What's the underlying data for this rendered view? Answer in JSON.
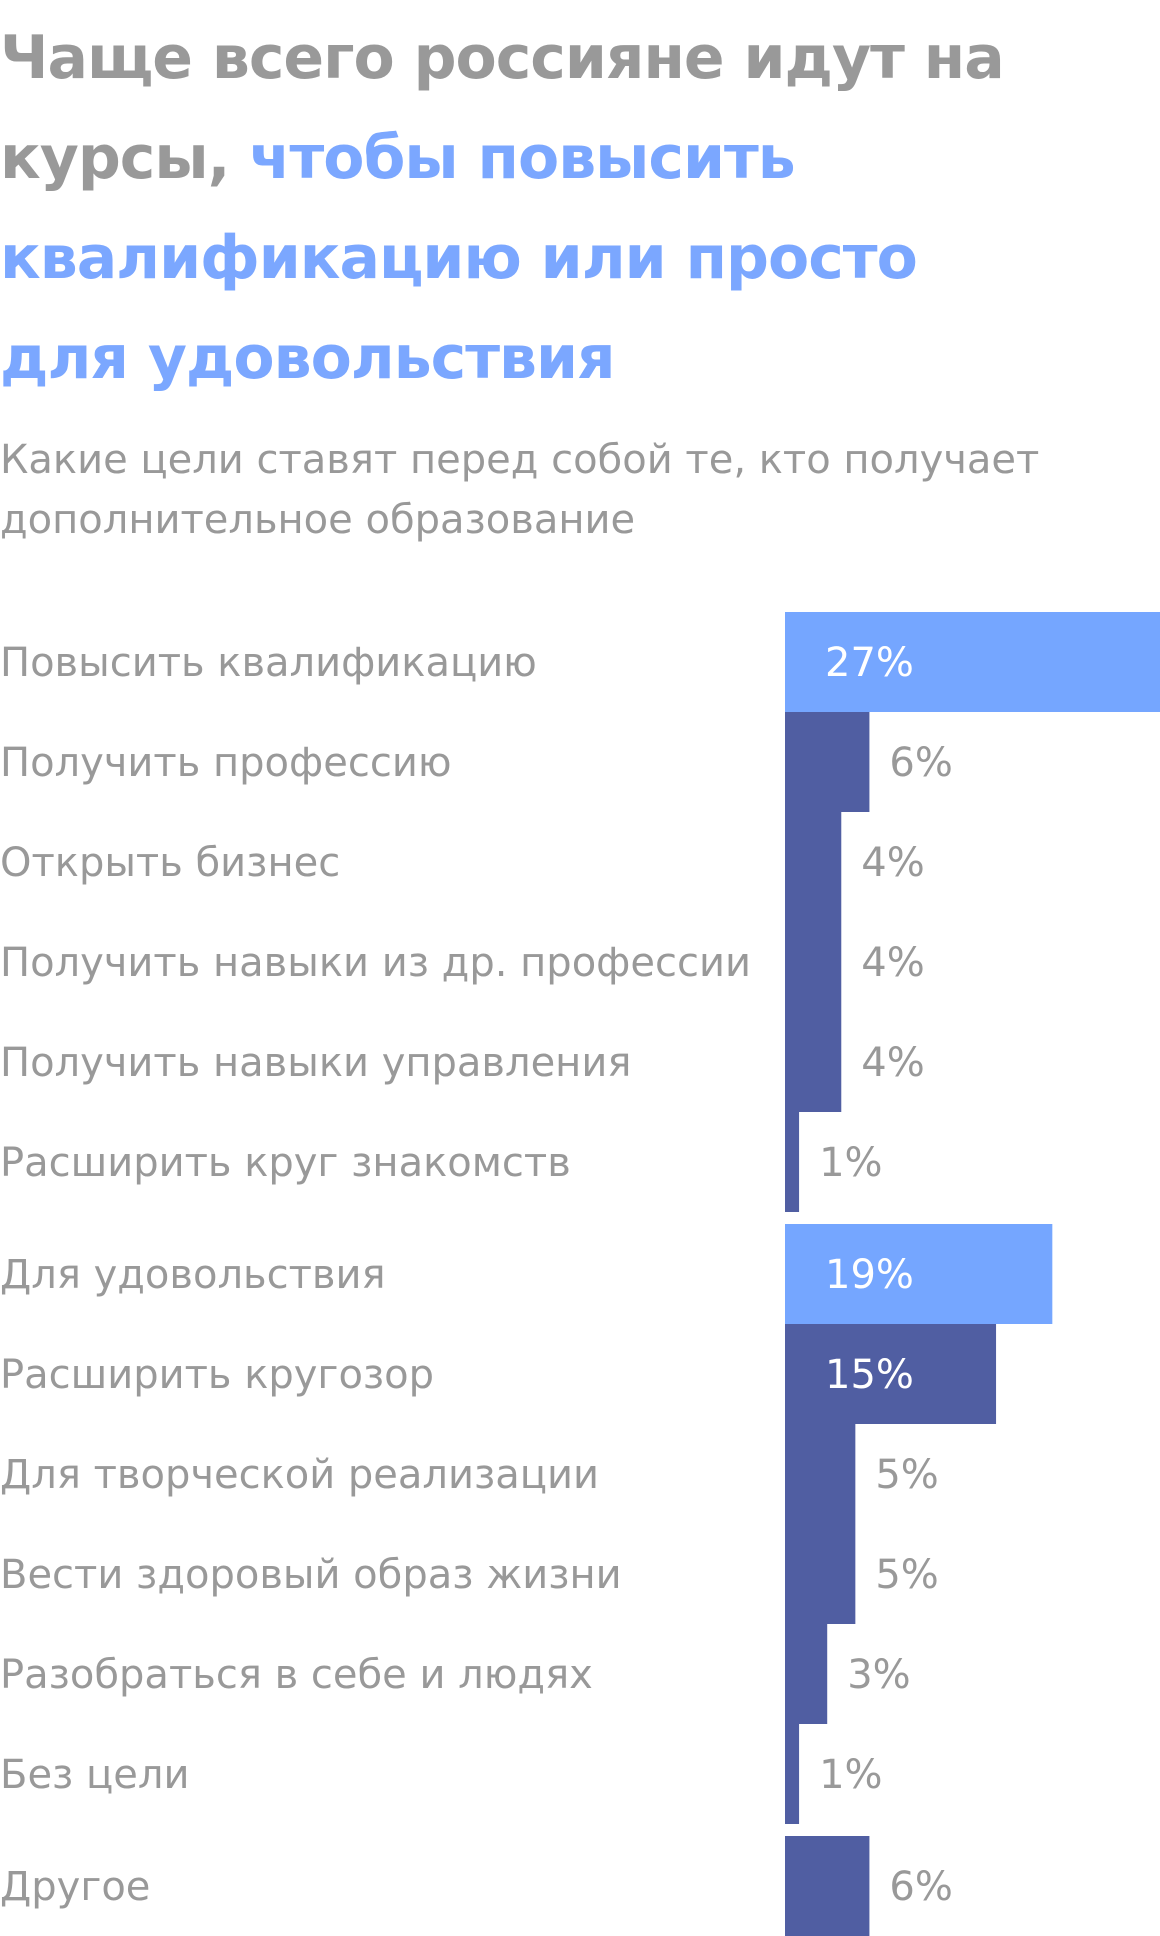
{
  "title": {
    "part1": "Чаще всего россияне идут на курсы, ",
    "part2": "чтобы повысить квалификацию или просто для удовольствия"
  },
  "subtitle": "Какие цели ставят перед собой те, кто получает дополнительное образование",
  "colors": {
    "title": "#999999",
    "highlight": "#7ba7ff",
    "bar_dark": "#505ea2",
    "bar_light": "#75a6ff",
    "label": "#999999",
    "value_on_bar": "#ffffff",
    "value_outside": "#999999"
  },
  "chart_data": {
    "type": "bar",
    "orientation": "horizontal",
    "unit": "%",
    "groups": [
      {
        "categories": [
          "Повысить квалификацию",
          "Получить профессию",
          "Открыть бизнес",
          "Получить навыки из др. профессии",
          "Получить навыки управления",
          "Расширить круг знакомств"
        ],
        "values": [
          27,
          6,
          4,
          4,
          4,
          1
        ],
        "labels": [
          "27%",
          "6%",
          "4%",
          "4%",
          "4%",
          "1%"
        ],
        "highlighted": [
          true,
          false,
          false,
          false,
          false,
          false
        ]
      },
      {
        "categories": [
          "Для удовольствия",
          "Расширить кругозор",
          "Для творческой реализации",
          "Вести здоровый образ жизни",
          "Разобраться в себе и людях",
          "Без цели"
        ],
        "values": [
          19,
          15,
          5,
          5,
          3,
          1
        ],
        "labels": [
          "19%",
          "15%",
          "5%",
          "5%",
          "3%",
          "1%"
        ],
        "highlighted": [
          true,
          false,
          false,
          false,
          false,
          false
        ]
      },
      {
        "categories": [
          "Другое"
        ],
        "values": [
          6
        ],
        "labels": [
          "6%"
        ],
        "highlighted": [
          false
        ]
      }
    ]
  }
}
